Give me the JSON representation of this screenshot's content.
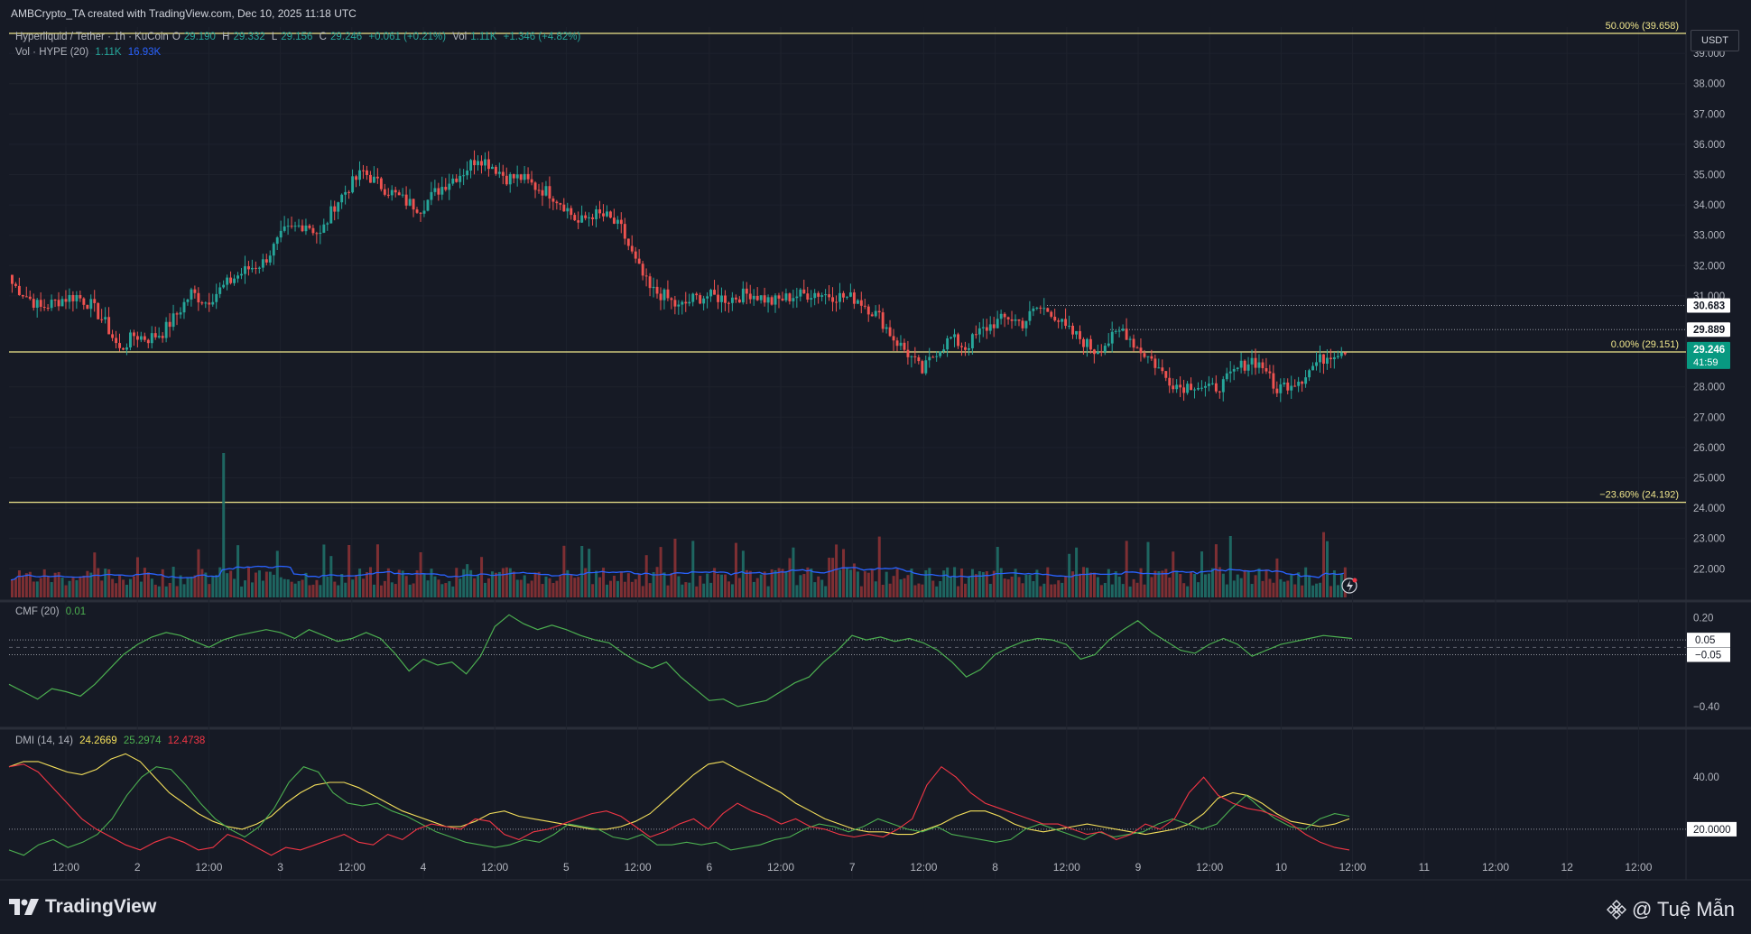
{
  "header": {
    "text": "AMBCrypto_TA created with TradingView.com, Dec 10, 2025 11:18 UTC"
  },
  "symbol_legend": {
    "title": "Hyperliquid / Tether · 1h · KuCoin",
    "o_label": "O",
    "o": "29.190",
    "h_label": "H",
    "h": "29.332",
    "l_label": "L",
    "l": "29.156",
    "c_label": "C",
    "c": "29.246",
    "change": "+0.061 (+0.21%)",
    "vol_label": "Vol",
    "vol": "1.11K",
    "vol_change": "+1.346 (+4.82%)"
  },
  "volume_legend": {
    "title": "Vol · HYPE (20)",
    "vol": "1.11K",
    "ma": "16.93K"
  },
  "cmf_legend": {
    "title": "CMF (20)",
    "value": "0.01"
  },
  "dmi_legend": {
    "title": "DMI (14, 14)",
    "adx": "24.2669",
    "plus_di": "25.2974",
    "minus_di": "12.4738"
  },
  "currency": "USDT",
  "footer": {
    "brand": "TradingView",
    "watermark": "@ Tuệ Mẫn"
  },
  "colors": {
    "up": "#26a69a",
    "down": "#ef5350",
    "fib": "#f0e68c",
    "vol_ma": "#2962ff",
    "cmf": "#4caf50",
    "adx": "#f5e05b",
    "plus_di": "#4caf50",
    "minus_di": "#f23645",
    "last_price_bg": "#089981"
  },
  "chart_data": [
    {
      "type": "candlestick",
      "timeframe": "1h",
      "x_ticks": [
        "12:00",
        "2",
        "12:00",
        "3",
        "12:00",
        "4",
        "12:00",
        "5",
        "12:00",
        "6",
        "12:00",
        "7",
        "12:00",
        "8",
        "12:00",
        "9",
        "12:00",
        "10",
        "12:00",
        "11",
        "12:00",
        "12",
        "12:00"
      ],
      "y_ticks": [
        "39.000",
        "38.000",
        "37.000",
        "36.000",
        "35.000",
        "34.000",
        "33.000",
        "32.000",
        "31.000",
        "28.000",
        "27.000",
        "26.000",
        "25.000",
        "24.000",
        "23.000",
        "22.000"
      ],
      "ylim": [
        21.5,
        40.1
      ],
      "close_path": [
        [
          0,
          31.4
        ],
        [
          8,
          30.6
        ],
        [
          14,
          30.9
        ],
        [
          18,
          31.0
        ],
        [
          22,
          30.7
        ],
        [
          26,
          30.1
        ],
        [
          30,
          29.2
        ],
        [
          34,
          29.7
        ],
        [
          38,
          29.6
        ],
        [
          42,
          29.8
        ],
        [
          46,
          30.4
        ],
        [
          50,
          31.1
        ],
        [
          54,
          30.8
        ],
        [
          58,
          31.2
        ],
        [
          62,
          31.6
        ],
        [
          66,
          31.9
        ],
        [
          70,
          32.1
        ],
        [
          76,
          33.1
        ],
        [
          82,
          33.4
        ],
        [
          86,
          33.0
        ],
        [
          90,
          34.0
        ],
        [
          94,
          34.6
        ],
        [
          98,
          35.1
        ],
        [
          102,
          34.7
        ],
        [
          106,
          34.4
        ],
        [
          110,
          34.1
        ],
        [
          114,
          33.9
        ],
        [
          118,
          34.4
        ],
        [
          122,
          34.8
        ],
        [
          126,
          35.1
        ],
        [
          130,
          35.6
        ],
        [
          134,
          35.3
        ],
        [
          138,
          34.9
        ],
        [
          142,
          34.9
        ],
        [
          146,
          34.6
        ],
        [
          150,
          34.4
        ],
        [
          154,
          34.0
        ],
        [
          158,
          33.4
        ],
        [
          162,
          33.7
        ],
        [
          166,
          33.6
        ],
        [
          170,
          33.2
        ],
        [
          174,
          32.1
        ],
        [
          178,
          31.2
        ],
        [
          182,
          31.0
        ],
        [
          186,
          30.6
        ],
        [
          190,
          30.9
        ],
        [
          194,
          31.0
        ],
        [
          200,
          30.9
        ],
        [
          206,
          31.1
        ],
        [
          212,
          30.8
        ],
        [
          218,
          31.0
        ],
        [
          224,
          31.1
        ],
        [
          230,
          31.0
        ],
        [
          236,
          30.9
        ],
        [
          242,
          30.3
        ],
        [
          246,
          29.6
        ],
        [
          250,
          29.1
        ],
        [
          254,
          28.5
        ],
        [
          258,
          29.2
        ],
        [
          262,
          29.6
        ],
        [
          266,
          29.3
        ],
        [
          270,
          29.8
        ],
        [
          274,
          30.1
        ],
        [
          278,
          30.3
        ],
        [
          282,
          30.1
        ],
        [
          286,
          30.6
        ],
        [
          290,
          30.5
        ],
        [
          294,
          29.9
        ],
        [
          298,
          29.6
        ],
        [
          302,
          29.2
        ],
        [
          306,
          29.5
        ],
        [
          310,
          29.9
        ],
        [
          314,
          29.3
        ],
        [
          318,
          28.9
        ],
        [
          322,
          28.3
        ],
        [
          326,
          28.0
        ],
        [
          330,
          28.1
        ],
        [
          334,
          27.9
        ],
        [
          338,
          28.1
        ],
        [
          342,
          28.6
        ],
        [
          346,
          28.9
        ],
        [
          350,
          28.6
        ],
        [
          352,
          27.9
        ],
        [
          356,
          28.1
        ],
        [
          360,
          28.3
        ],
        [
          364,
          28.8
        ],
        [
          368,
          29.1
        ],
        [
          372,
          29.25
        ]
      ],
      "volume_spike": {
        "index": 59,
        "label": "spike"
      },
      "fib_levels": [
        {
          "label": "50.00% (39.658)",
          "value": 39.658
        },
        {
          "label": "0.00% (29.151)",
          "value": 29.151
        },
        {
          "label": "−23.60% (24.192)",
          "value": 24.192
        }
      ],
      "price_labels": [
        {
          "text": "30.683",
          "value": 30.683
        },
        {
          "text": "29.889",
          "value": 29.889
        },
        {
          "text": "29.246",
          "value": 29.246,
          "countdown": "41:59"
        }
      ]
    },
    {
      "type": "line",
      "name": "CMF (20)",
      "y_ticks": [
        "0.20",
        "−0.40"
      ],
      "ylim": [
        -0.48,
        0.24
      ],
      "levels": [
        {
          "text": "0.05",
          "value": 0.05
        },
        {
          "text": "−0.05",
          "value": -0.05
        }
      ],
      "values": [
        -0.25,
        -0.3,
        -0.35,
        -0.28,
        -0.3,
        -0.33,
        -0.25,
        -0.15,
        -0.05,
        0.02,
        0.07,
        0.1,
        0.08,
        0.04,
        0.0,
        0.05,
        0.08,
        0.1,
        0.12,
        0.1,
        0.06,
        0.12,
        0.08,
        0.04,
        0.06,
        0.1,
        0.06,
        -0.04,
        -0.16,
        -0.08,
        -0.12,
        -0.1,
        -0.18,
        -0.06,
        0.14,
        0.22,
        0.16,
        0.12,
        0.15,
        0.12,
        0.08,
        0.05,
        0.03,
        -0.04,
        -0.1,
        -0.14,
        -0.1,
        -0.2,
        -0.28,
        -0.36,
        -0.35,
        -0.4,
        -0.38,
        -0.36,
        -0.3,
        -0.24,
        -0.2,
        -0.1,
        -0.02,
        0.08,
        0.05,
        0.07,
        0.04,
        0.06,
        0.03,
        -0.02,
        -0.1,
        -0.2,
        -0.15,
        -0.05,
        0.0,
        0.04,
        0.06,
        0.05,
        0.02,
        -0.08,
        -0.05,
        0.05,
        0.12,
        0.18,
        0.1,
        0.04,
        -0.02,
        -0.04,
        0.02,
        0.06,
        0.02,
        -0.06,
        -0.02,
        0.02,
        0.04,
        0.06,
        0.08,
        0.07,
        0.06
      ]
    },
    {
      "type": "line",
      "name": "DMI (14, 14)",
      "y_ticks": [
        "40.00"
      ],
      "ylim": [
        4,
        55
      ],
      "levels": [
        {
          "text": "20.0000",
          "value": 20
        }
      ],
      "series": [
        {
          "name": "ADX",
          "values": [
            44,
            46,
            46,
            44,
            42,
            41,
            43,
            47,
            49,
            46,
            40,
            34,
            30,
            26,
            23,
            21,
            20,
            22,
            25,
            30,
            34,
            37,
            38,
            38,
            36,
            33,
            30,
            27,
            25,
            23,
            21,
            21,
            23,
            26,
            27,
            25,
            24,
            23,
            22,
            21,
            20,
            20,
            21,
            23,
            26,
            31,
            36,
            41,
            45,
            46,
            43,
            40,
            37,
            34,
            30,
            27,
            24,
            22,
            20,
            19,
            19,
            18,
            18,
            20,
            22,
            25,
            27,
            27,
            25,
            22,
            20,
            19,
            20,
            21,
            22,
            21,
            20,
            19,
            18,
            19,
            20,
            22,
            26,
            32,
            34,
            33,
            30,
            26,
            23,
            22,
            21,
            22,
            24
          ]
        },
        {
          "name": "+DI",
          "values": [
            12,
            10,
            14,
            16,
            13,
            15,
            18,
            24,
            33,
            40,
            44,
            43,
            37,
            30,
            24,
            20,
            17,
            21,
            28,
            38,
            44,
            42,
            34,
            30,
            29,
            30,
            27,
            25,
            22,
            19,
            17,
            15,
            14,
            13,
            14,
            16,
            15,
            18,
            22,
            21,
            20,
            17,
            16,
            18,
            14,
            14,
            15,
            14,
            15,
            12,
            13,
            14,
            16,
            17,
            20,
            22,
            21,
            19,
            21,
            24,
            22,
            20,
            19,
            21,
            18,
            17,
            16,
            15,
            16,
            20,
            22,
            20,
            18,
            16,
            19,
            17,
            18,
            19,
            22,
            24,
            22,
            20,
            22,
            28,
            33,
            28,
            24,
            21,
            20,
            24,
            26,
            25
          ]
        },
        {
          "name": "−DI",
          "values": [
            44,
            45,
            42,
            36,
            30,
            24,
            20,
            17,
            14,
            12,
            15,
            17,
            15,
            12,
            13,
            18,
            16,
            13,
            10,
            13,
            12,
            14,
            16,
            18,
            15,
            14,
            18,
            16,
            20,
            22,
            21,
            20,
            24,
            23,
            18,
            16,
            19,
            20,
            22,
            24,
            26,
            27,
            25,
            21,
            17,
            19,
            22,
            24,
            20,
            26,
            30,
            27,
            25,
            22,
            24,
            21,
            20,
            18,
            17,
            18,
            17,
            20,
            24,
            37,
            44,
            40,
            34,
            30,
            28,
            26,
            24,
            22,
            22,
            20,
            18,
            19,
            16,
            18,
            22,
            20,
            24,
            34,
            40,
            33,
            30,
            28,
            27,
            25,
            22,
            18,
            15,
            13,
            12
          ]
        }
      ]
    }
  ]
}
